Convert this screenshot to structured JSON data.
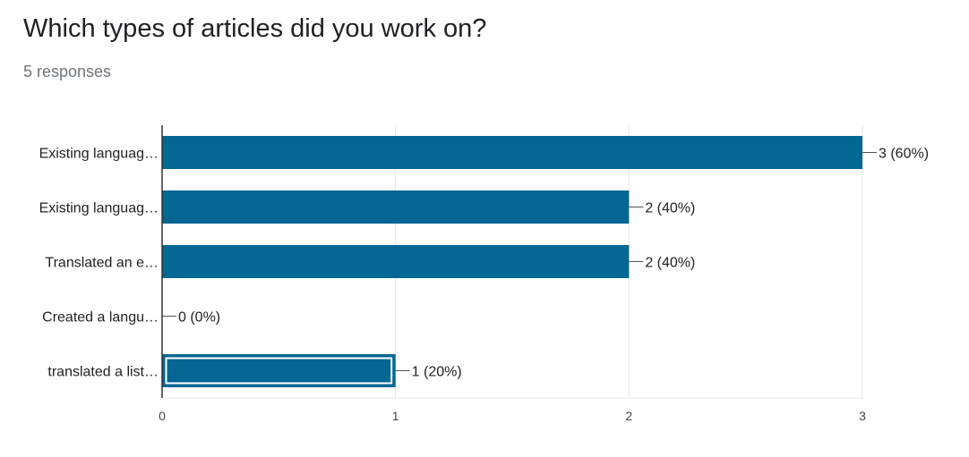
{
  "title": "Which types of articles did you work on?",
  "subtitle": "5 responses",
  "chart_data": {
    "type": "bar",
    "orientation": "horizontal",
    "categories": [
      "Existing languag…",
      "Existing languag…",
      "Translated an e…",
      "Created a langu…",
      "translated a list…"
    ],
    "values": [
      3,
      2,
      2,
      0,
      1
    ],
    "data_labels": [
      "3 (60%)",
      "2 (40%)",
      "2 (40%)",
      "0 (0%)",
      "1 (20%)"
    ],
    "selected_index": 4,
    "xlim": [
      0,
      3
    ],
    "xticks": [
      0,
      1,
      2,
      3
    ],
    "xtick_labels": [
      "0",
      "1",
      "2",
      "3"
    ],
    "grid": true,
    "bar_color": "#046692",
    "grid_color": "#e6e6e6",
    "axis_color": "#333333"
  }
}
